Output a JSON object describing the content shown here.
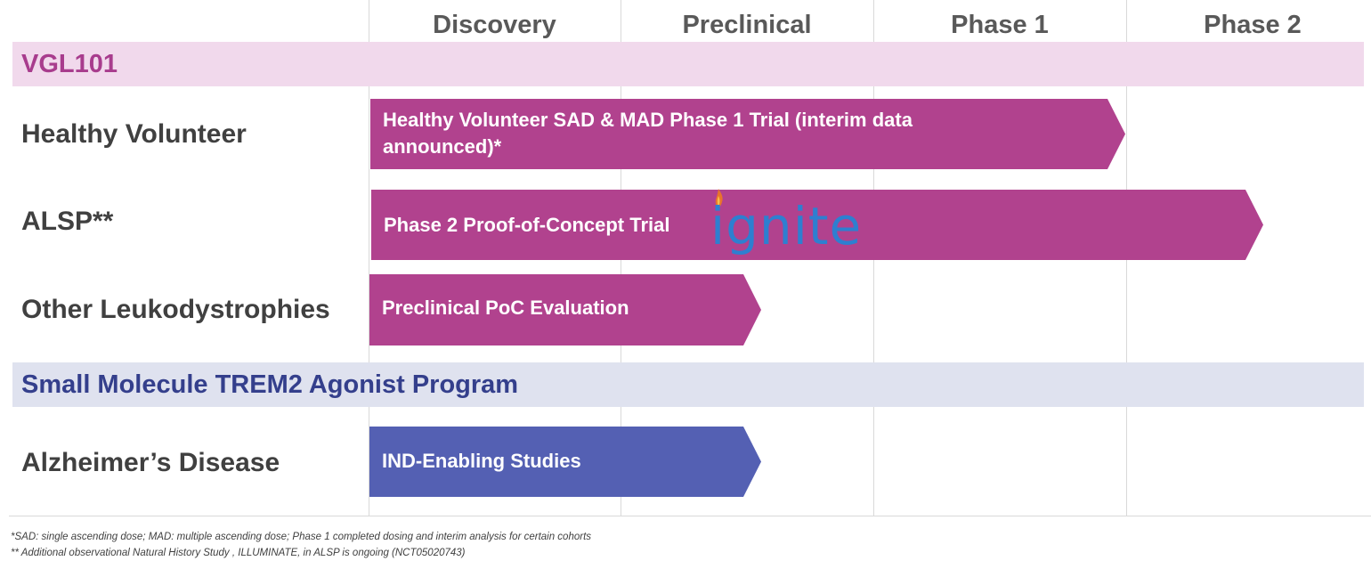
{
  "phases": [
    "Discovery",
    "Preclinical",
    "Phase 1",
    "Phase 2"
  ],
  "sections": {
    "vgl101": {
      "label": "VGL101"
    },
    "trem2": {
      "label": "Small Molecule TREM2 Agonist Program"
    }
  },
  "rows": [
    {
      "label": "Healthy Volunteer",
      "bar_text": "Healthy Volunteer SAD & MAD Phase 1 Trial (interim data announced)*",
      "bar_color": "#b1428e"
    },
    {
      "label": "ALSP**",
      "bar_text": "Phase 2 Proof-of-Concept Trial",
      "bar_color": "#b1428e"
    },
    {
      "label": "Other Leukodystrophies",
      "bar_text": "Preclinical PoC Evaluation",
      "bar_color": "#b1428e"
    },
    {
      "label": "Alzheimer’s Disease",
      "bar_text": "IND-Enabling Studies",
      "bar_color": "#5460b3"
    }
  ],
  "logo": {
    "text": "ignite",
    "icon": "flame-icon",
    "color": "#2e7fd0"
  },
  "footnotes": [
    "*SAD: single ascending dose; MAD: multiple ascending dose; Phase 1 completed dosing and interim analysis for certain cohorts",
    "** Additional observational Natural History Study , ILLUMINATE, in ALSP is ongoing (NCT05020743)"
  ]
}
